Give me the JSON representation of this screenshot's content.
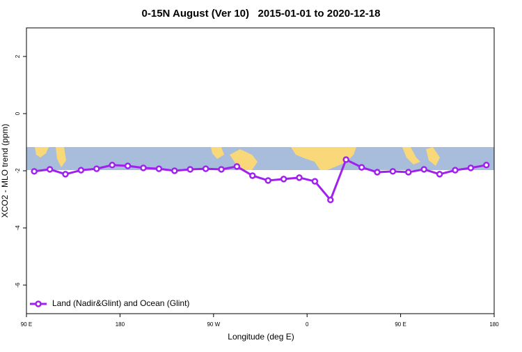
{
  "chart_data": {
    "type": "line",
    "title": "0-15N August (Ver 10)   2015-01-01 to 2020-12-18",
    "xlabel": "Longitude (deg E)",
    "ylabel": "XCO2 - MLO trend (ppm)",
    "x": [
      97.5,
      112.5,
      127.5,
      142.5,
      157.5,
      172.5,
      187.5,
      202.5,
      217.5,
      232.5,
      247.5,
      262.5,
      277.5,
      292.5,
      307.5,
      322.5,
      337.5,
      352.5,
      367.5,
      382.5,
      397.5,
      412.5,
      427.5,
      442.5,
      457.5,
      472.5,
      487.5,
      502.5,
      517.5,
      532.5
    ],
    "series": [
      {
        "name": "Land (Nadir&Glint) and Ocean (Glint)",
        "color": "#a020f0",
        "values": [
          -2.02,
          -1.95,
          -2.12,
          -1.98,
          -1.93,
          -1.8,
          -1.83,
          -1.9,
          -1.93,
          -2.0,
          -1.95,
          -1.93,
          -1.95,
          -1.85,
          -2.17,
          -2.34,
          -2.29,
          -2.24,
          -2.37,
          -3.02,
          -1.61,
          -1.88,
          -2.05,
          -2.02,
          -2.05,
          -1.95,
          -2.12,
          -1.98,
          -1.9,
          -1.8
        ]
      }
    ],
    "xlim": [
      90,
      540
    ],
    "xticks": [
      {
        "value": 90,
        "label": "90 E"
      },
      {
        "value": 180,
        "label": "180"
      },
      {
        "value": 270,
        "label": "90 W"
      },
      {
        "value": 360,
        "label": "0"
      },
      {
        "value": 450,
        "label": "90 E"
      },
      {
        "value": 540,
        "label": "180"
      }
    ],
    "ylim": [
      -7,
      3
    ],
    "yticks": [
      -6,
      -4,
      -2,
      0,
      2
    ],
    "legend": "bottom-left"
  }
}
